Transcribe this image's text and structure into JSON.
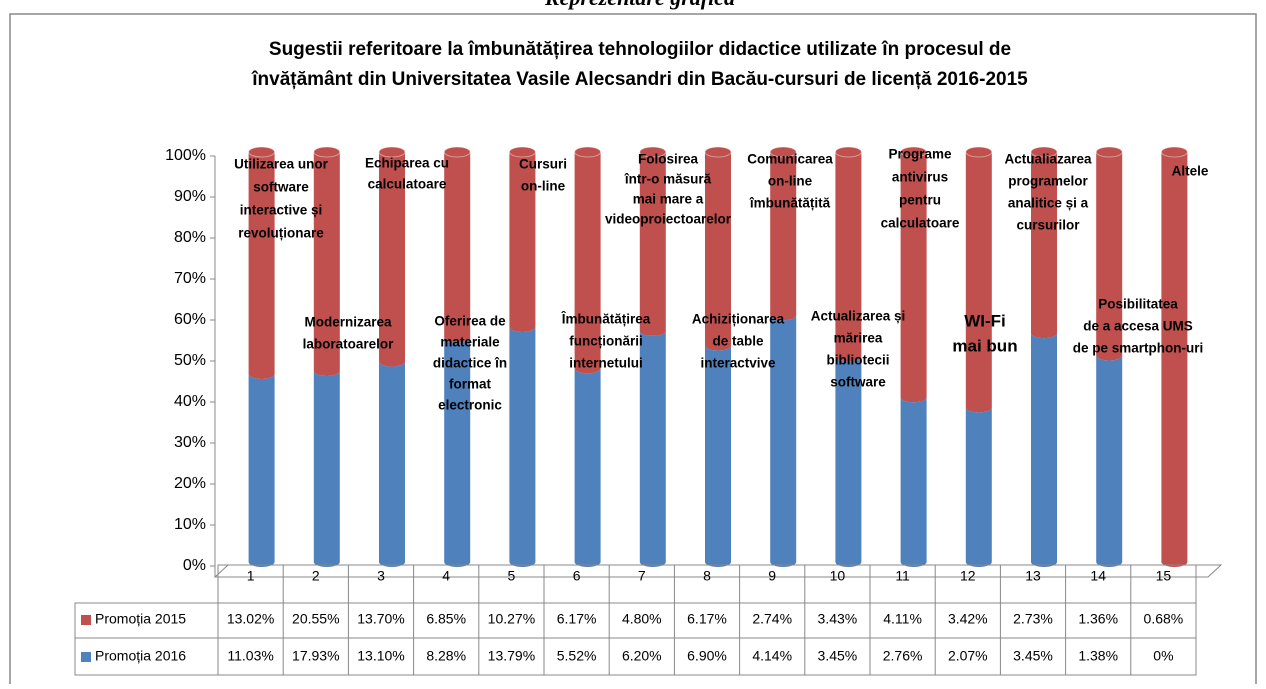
{
  "header": "Reprezentare grafică",
  "chart_data": {
    "type": "bar",
    "stacked": "percent",
    "cylinder": true,
    "title": [
      "Sugestii referitoare la îmbunătățirea tehnologiilor didactice utilizate în procesul de",
      "învățământ din Universitatea Vasile Alecsandri din Bacău-cursuri de licență 2016-2015"
    ],
    "categories": [
      "1",
      "2",
      "3",
      "4",
      "5",
      "6",
      "7",
      "8",
      "9",
      "10",
      "11",
      "12",
      "13",
      "14",
      "15"
    ],
    "series": [
      {
        "name": "Promoția 2016",
        "color": "#4f81bd",
        "values": [
          11.03,
          17.93,
          13.1,
          8.28,
          13.79,
          5.52,
          6.2,
          6.9,
          4.14,
          3.45,
          2.76,
          2.07,
          3.45,
          1.38,
          0
        ],
        "value_labels": [
          "11.03%",
          "17.93%",
          "13.10%",
          "8.28%",
          "13.79%",
          "5.52%",
          "6.20%",
          "6.90%",
          "4.14%",
          "3.45%",
          "2.76%",
          "2.07%",
          "3.45%",
          "1.38%",
          "0%"
        ]
      },
      {
        "name": "Promoția 2015",
        "color": "#c0504d",
        "values": [
          13.02,
          20.55,
          13.7,
          6.85,
          10.27,
          6.17,
          4.8,
          6.17,
          2.74,
          3.43,
          4.11,
          3.42,
          2.73,
          1.36,
          0.68
        ],
        "value_labels": [
          "13.02%",
          "20.55%",
          "13.70%",
          "6.85%",
          "10.27%",
          "6.17%",
          "4.80%",
          "6.17%",
          "2.74%",
          "3.43%",
          "4.11%",
          "3.42%",
          "2.73%",
          "1.36%",
          "0.68%"
        ]
      }
    ],
    "ylim": [
      0,
      100
    ],
    "yticks": [
      {
        "value": 0,
        "label": "0%"
      },
      {
        "value": 10,
        "label": "10%"
      },
      {
        "value": 20,
        "label": "20%"
      },
      {
        "value": 30,
        "label": "30%"
      },
      {
        "value": 40,
        "label": "40%"
      },
      {
        "value": 50,
        "label": "50%"
      },
      {
        "value": 60,
        "label": "60%"
      },
      {
        "value": 70,
        "label": "70%"
      },
      {
        "value": 80,
        "label": "80%"
      },
      {
        "value": 90,
        "label": "90%"
      },
      {
        "value": 100,
        "label": "100%"
      }
    ],
    "grid": false,
    "data_table": true,
    "annotations": [
      [
        "Utilizarea unor",
        "software",
        "interactive și",
        "revoluționare"
      ],
      [
        "Modernizarea",
        "laboratoarelor"
      ],
      [
        "Echiparea cu",
        "calculatoare"
      ],
      [
        "Oferirea de",
        "materiale",
        "didactice în",
        "format",
        "electronic"
      ],
      [
        "Cursuri",
        "on-line"
      ],
      [
        "Îmbunătățirea",
        "funcționării",
        "internetului"
      ],
      [
        "Folosirea",
        "într-o măsură",
        "mai mare a",
        "videoproiectoarelor"
      ],
      [
        "Achiziționarea",
        "de table",
        "interactvive"
      ],
      [
        "Comunicarea",
        "on-line",
        "îmbunătățită"
      ],
      [
        "Actualizarea și",
        "mărirea",
        "bibliotecii",
        "software"
      ],
      [
        "Programe",
        "antivirus",
        "pentru",
        "calculatoare"
      ],
      [
        "WI-Fi",
        "mai bun"
      ],
      [
        "Actualiazarea",
        "programelor",
        "analitice și a",
        "cursurilor"
      ],
      [
        "Posibilitatea",
        "de a accesa UMS",
        "de pe smartphon-uri"
      ],
      [
        "Altele"
      ]
    ]
  }
}
